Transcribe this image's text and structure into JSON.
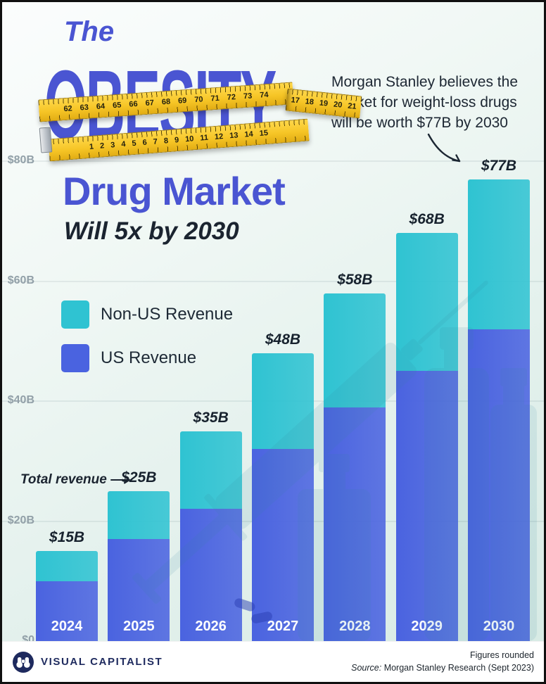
{
  "header": {
    "the": "The",
    "obesity": "OBESITY",
    "drug_market": "Drug Market",
    "subtitle": "Will 5x by 2030"
  },
  "annotation": {
    "line1": "Morgan Stanley believes the",
    "line2": "market for weight-loss drugs",
    "line3": "will be worth $77B by 2030"
  },
  "callout": {
    "total_revenue": "Total revenue"
  },
  "legend": {
    "non_us": {
      "label": "Non-US Revenue",
      "color": "#2fc3d2"
    },
    "us": {
      "label": "US Revenue",
      "color": "#4a63e0"
    }
  },
  "tape": {
    "top_numbers": "62 63 64 65 66 67 68 69 70 71 72 73 74",
    "end_numbers": "17 18 19 20 21",
    "bottom_numbers": "1 2 3 4 5 6 7 8 9 10 11 12 13 14 15"
  },
  "chart_data": {
    "type": "bar",
    "stacked": true,
    "title": "The Obesity Drug Market Will 5x by 2030",
    "categories": [
      "2024",
      "2025",
      "2026",
      "2027",
      "2028",
      "2029",
      "2030"
    ],
    "series": [
      {
        "name": "US Revenue",
        "color": "#4a63e0",
        "values": [
          10,
          17,
          22,
          32,
          39,
          45,
          52
        ]
      },
      {
        "name": "Non-US Revenue",
        "color": "#2fc3d2",
        "values": [
          5,
          8,
          13,
          16,
          19,
          23,
          25
        ]
      }
    ],
    "totals": [
      15,
      25,
      35,
      48,
      58,
      68,
      77
    ],
    "total_labels": [
      "$15B",
      "$25B",
      "$35B",
      "$48B",
      "$58B",
      "$68B",
      "$77B"
    ],
    "y_ticks": [
      "$0",
      "$20B",
      "$40B",
      "$60B",
      "$80B"
    ],
    "ylim": [
      0,
      80
    ],
    "grid": true,
    "legend_position": "upper-left",
    "units": "billions USD"
  },
  "footer": {
    "brand": "VISUAL CAPITALIST",
    "note": "Figures rounded",
    "source_prefix": "Source:",
    "source": "Morgan Stanley Research (Sept 2023)"
  }
}
